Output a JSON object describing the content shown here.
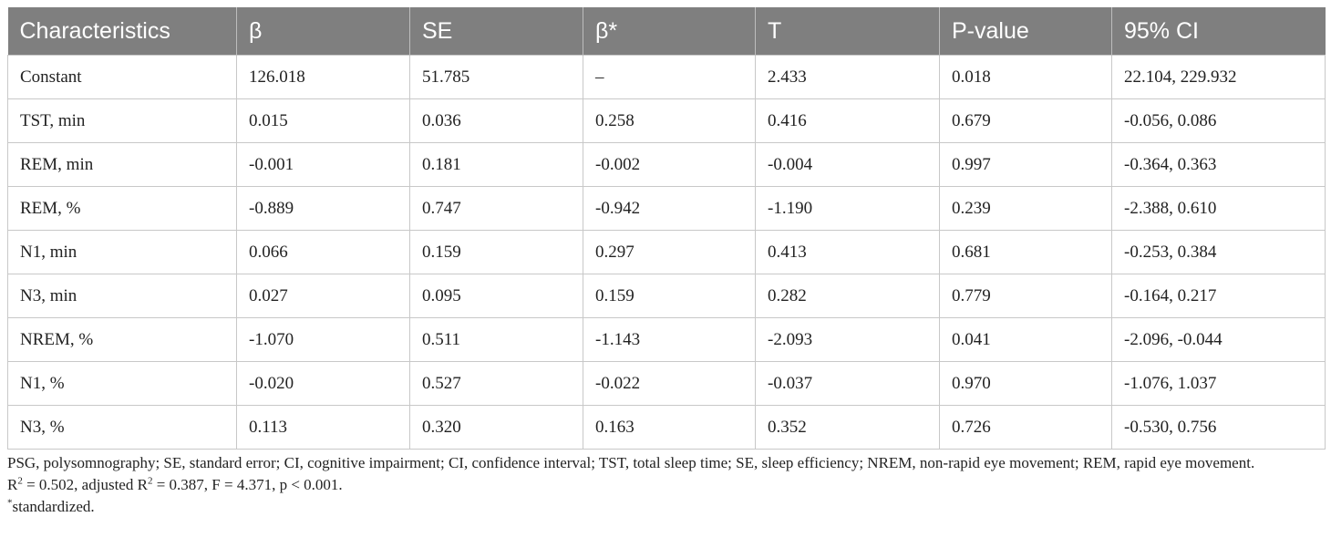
{
  "table": {
    "headers": [
      "Characteristics",
      "β",
      "SE",
      "β*",
      "T",
      "P-value",
      "95% CI"
    ],
    "rows": [
      [
        "Constant",
        "126.018",
        "51.785",
        "–",
        "2.433",
        "0.018",
        "22.104, 229.932"
      ],
      [
        "TST, min",
        "0.015",
        "0.036",
        "0.258",
        "0.416",
        "0.679",
        "-0.056, 0.086"
      ],
      [
        "REM, min",
        "-0.001",
        "0.181",
        "-0.002",
        "-0.004",
        "0.997",
        "-0.364, 0.363"
      ],
      [
        "REM, %",
        "-0.889",
        "0.747",
        "-0.942",
        "-1.190",
        "0.239",
        "-2.388, 0.610"
      ],
      [
        "N1, min",
        "0.066",
        "0.159",
        "0.297",
        "0.413",
        "0.681",
        "-0.253, 0.384"
      ],
      [
        "N3, min",
        "0.027",
        "0.095",
        "0.159",
        "0.282",
        "0.779",
        "-0.164, 0.217"
      ],
      [
        "NREM, %",
        "-1.070",
        "0.511",
        "-1.143",
        "-2.093",
        "0.041",
        "-2.096, -0.044"
      ],
      [
        "N1, %",
        "-0.020",
        "0.527",
        "-0.022",
        "-0.037",
        "0.970",
        "-1.076, 1.037"
      ],
      [
        "N3, %",
        "0.113",
        "0.320",
        "0.163",
        "0.352",
        "0.726",
        "-0.530, 0.756"
      ]
    ]
  },
  "notes": {
    "abbreviations": "PSG, polysomnography; SE, standard error; CI, cognitive impairment; CI, confidence interval; TST, total sleep time; SE, sleep efficiency; NREM, non-rapid eye movement; REM, rapid eye movement.",
    "stats": {
      "r2_label": "R",
      "r2_sup": "2",
      "r2_value": " = 0.502, adjusted R",
      "adj_sup": "2",
      "rest": " = 0.387, F = 4.371, p < 0.001."
    },
    "standardized_mark": "*",
    "standardized_text": "standardized."
  }
}
